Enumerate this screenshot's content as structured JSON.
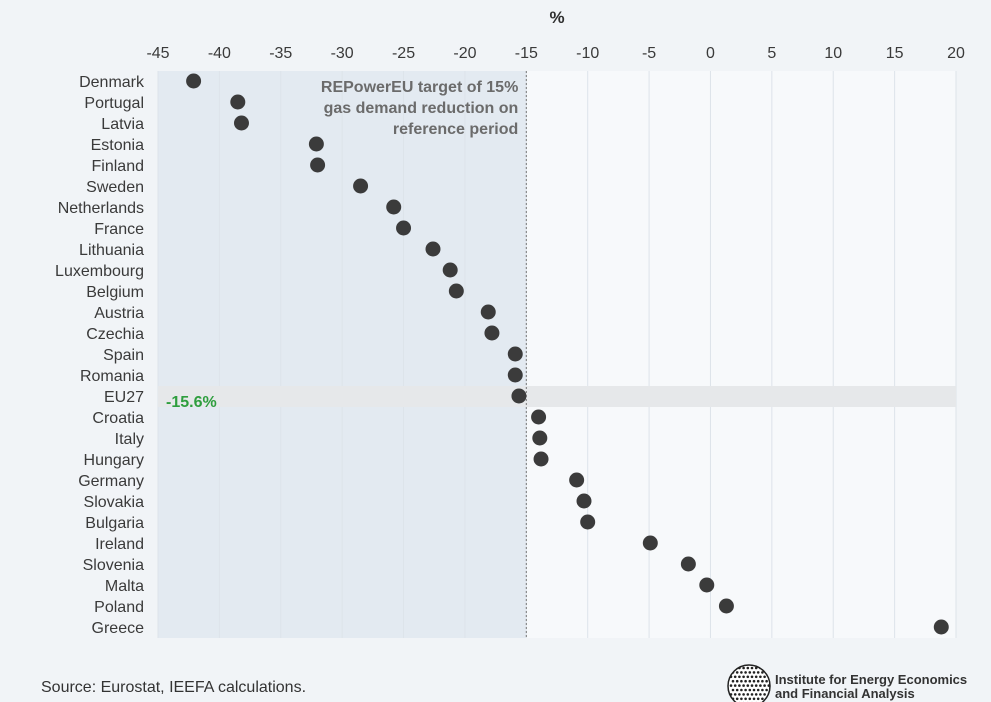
{
  "chart_data": {
    "type": "scatter",
    "orientation": "horizontal-dot",
    "unit_label": "%",
    "xlim": [
      -45,
      20
    ],
    "x_ticks": [
      -45,
      -40,
      -35,
      -30,
      -25,
      -20,
      -15,
      -10,
      -5,
      0,
      5,
      10,
      15,
      20
    ],
    "grid": true,
    "categories": [
      "Denmark",
      "Portugal",
      "Latvia",
      "Estonia",
      "Finland",
      "Sweden",
      "Netherlands",
      "France",
      "Lithuania",
      "Luxembourg",
      "Belgium",
      "Austria",
      "Czechia",
      "Spain",
      "Romania",
      "EU27",
      "Croatia",
      "Italy",
      "Hungary",
      "Germany",
      "Slovakia",
      "Bulgaria",
      "Ireland",
      "Slovenia",
      "Malta",
      "Poland",
      "Greece"
    ],
    "values": [
      -42.1,
      -38.5,
      -38.2,
      -32.1,
      -32.0,
      -28.5,
      -25.8,
      -25.0,
      -22.6,
      -21.2,
      -20.7,
      -18.1,
      -17.8,
      -15.9,
      -15.9,
      -15.6,
      -14.0,
      -13.9,
      -13.8,
      -10.9,
      -10.3,
      -10.0,
      -4.9,
      -1.8,
      -0.3,
      1.3,
      18.8
    ],
    "highlight": {
      "category": "EU27",
      "label": "-15.6%",
      "color": "#2e9e3e"
    },
    "target": {
      "value": -15,
      "lines": [
        "REPowerEU target of 15%",
        "gas demand reduction on",
        "reference period"
      ]
    },
    "colors": {
      "dot": "#3b3b3b",
      "shaded_region": "#e3eaf1",
      "highlight_band": "#e6e8ea",
      "grid": "#dde3ea",
      "plot_bg": "#f7f9fb"
    }
  },
  "source": "Source: Eurostat, IEEFA calculations.",
  "logo": {
    "line1": "Institute for Energy Economics",
    "line2": "and Financial Analysis",
    "icon": "globe-icon"
  }
}
